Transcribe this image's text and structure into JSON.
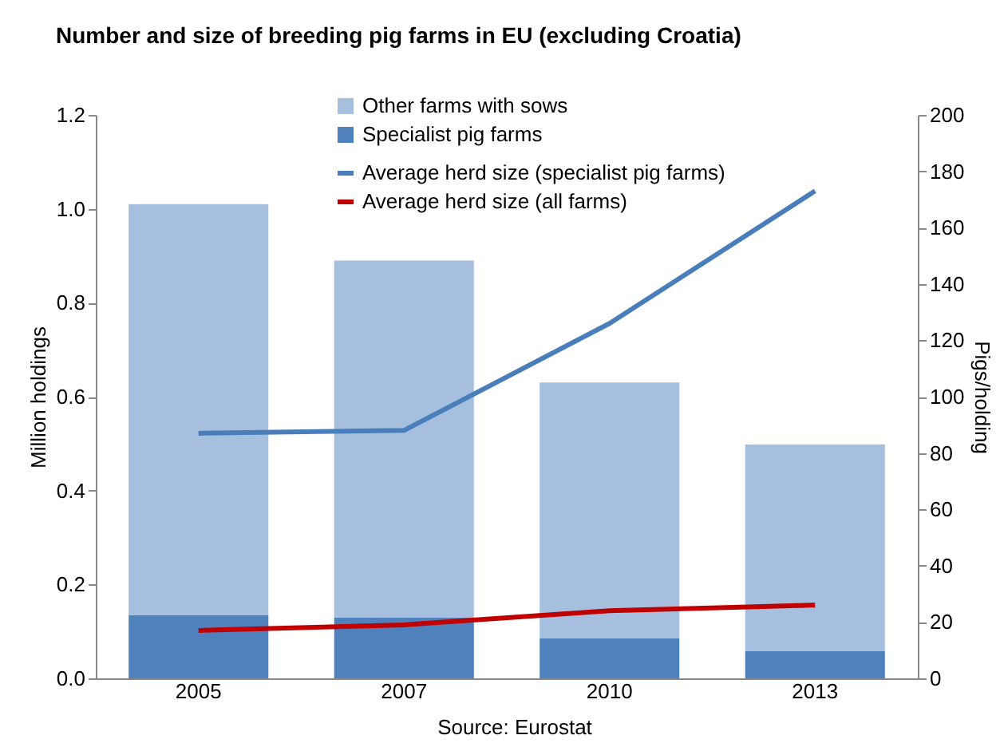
{
  "chart_data": {
    "type": "bar",
    "title": "Number and size of breeding pig farms in EU (excluding Croatia)",
    "categories": [
      "2005",
      "2007",
      "2010",
      "2013"
    ],
    "stacked": true,
    "series": [
      {
        "name": "Specialist pig farms",
        "color": "#4f81bd",
        "values": [
          0.135,
          0.13,
          0.085,
          0.058
        ]
      },
      {
        "name": "Other farms with sows",
        "color": "#a7bfdf",
        "values": [
          0.875,
          0.76,
          0.545,
          0.44
        ]
      },
      {
        "name": "Average herd size (specialist pig farms)",
        "type": "line",
        "axis": "y2",
        "color": "#4a7ebb",
        "values": [
          87,
          88,
          126,
          173
        ]
      },
      {
        "name": "Average herd size (all farms)",
        "type": "line",
        "axis": "y2",
        "color": "#c00000",
        "values": [
          17,
          19,
          24,
          26
        ]
      }
    ],
    "ylabel": "Million holdings",
    "y2label": "Pigs/holding",
    "ylim": [
      0,
      1.2
    ],
    "yticks": [
      {
        "value": 0,
        "label": "0.0"
      },
      0.2,
      0.4,
      0.6,
      0.8,
      {
        "value": 1,
        "label": "1.0"
      },
      1.2
    ],
    "y2lim": [
      0,
      200
    ],
    "y2ticks": [
      0,
      20,
      40,
      60,
      80,
      100,
      120,
      140,
      160,
      180,
      200
    ],
    "legend": "top",
    "grid": false,
    "annotations": [
      "Source: Eurostat"
    ]
  }
}
